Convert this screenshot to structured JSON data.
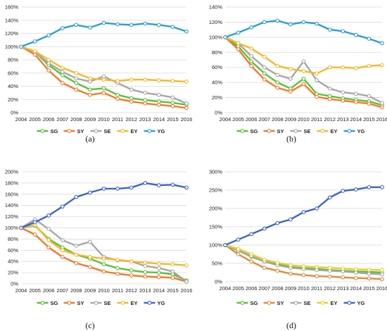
{
  "chart_data": [
    {
      "type": "line",
      "panel_label": "(a)",
      "x": [
        "2004",
        "2005",
        "2006",
        "2007",
        "2008",
        "2009",
        "2010",
        "2011",
        "2012",
        "2013",
        "2014",
        "2015",
        "2016"
      ],
      "ylim": [
        0,
        160
      ],
      "yticks": [
        0,
        20,
        40,
        60,
        80,
        100,
        120,
        140,
        160
      ],
      "ytick_suffix": "%",
      "grid": true,
      "legend_position": "bottom",
      "series": [
        {
          "name": "SG",
          "color": "#5bbf3a",
          "values": [
            100,
            92,
            72,
            57,
            45,
            35,
            37,
            27,
            22,
            19,
            17,
            15,
            12
          ]
        },
        {
          "name": "SY",
          "color": "#f07a2a",
          "values": [
            100,
            88,
            64,
            45,
            35,
            27,
            30,
            21,
            17,
            14,
            12,
            10,
            7
          ]
        },
        {
          "name": "SE",
          "color": "#a6a6a6",
          "values": [
            100,
            92,
            75,
            62,
            52,
            47,
            55,
            45,
            35,
            30,
            27,
            23,
            14
          ]
        },
        {
          "name": "EY",
          "color": "#f4b828",
          "values": [
            100,
            93,
            80,
            68,
            60,
            52,
            50,
            48,
            50,
            50,
            49,
            48,
            47
          ]
        },
        {
          "name": "YG",
          "color": "#2b9ed2",
          "values": [
            100,
            108,
            117,
            128,
            133,
            129,
            136,
            134,
            133,
            135,
            133,
            130,
            123
          ]
        }
      ]
    },
    {
      "type": "line",
      "panel_label": "(b)",
      "x": [
        "2004",
        "2005",
        "2006",
        "2007",
        "2008",
        "2009",
        "2010",
        "2011",
        "2012",
        "2013",
        "2014",
        "2015",
        "2016"
      ],
      "ylim": [
        0,
        140
      ],
      "yticks": [
        0,
        20,
        40,
        60,
        80,
        100,
        120,
        140
      ],
      "ytick_suffix": "%",
      "grid": true,
      "legend_position": "bottom",
      "series": [
        {
          "name": "SG",
          "color": "#5bbf3a",
          "values": [
            100,
            88,
            68,
            52,
            40,
            32,
            45,
            25,
            22,
            19,
            17,
            15,
            10
          ]
        },
        {
          "name": "SY",
          "color": "#f07a2a",
          "values": [
            100,
            84,
            62,
            44,
            33,
            28,
            38,
            21,
            18,
            16,
            14,
            12,
            7
          ]
        },
        {
          "name": "SE",
          "color": "#a6a6a6",
          "values": [
            100,
            92,
            75,
            60,
            50,
            45,
            68,
            43,
            32,
            27,
            25,
            22,
            13
          ]
        },
        {
          "name": "EY",
          "color": "#f4b828",
          "values": [
            100,
            92,
            85,
            74,
            62,
            58,
            55,
            52,
            60,
            60,
            59,
            62,
            63
          ]
        },
        {
          "name": "YG",
          "color": "#2b9ed2",
          "values": [
            100,
            106,
            113,
            120,
            122,
            117,
            120,
            118,
            110,
            108,
            103,
            98,
            92
          ]
        }
      ]
    },
    {
      "type": "line",
      "panel_label": "(c)",
      "x": [
        "2004",
        "2005",
        "2006",
        "2007",
        "2008",
        "2009",
        "2010",
        "2011",
        "2012",
        "2013",
        "2014",
        "2015",
        "2016"
      ],
      "ylim": [
        0,
        200
      ],
      "yticks": [
        0,
        20,
        40,
        60,
        80,
        100,
        120,
        140,
        160,
        180,
        200
      ],
      "ytick_suffix": "%",
      "grid": true,
      "legend_position": "bottom",
      "series": [
        {
          "name": "SG",
          "color": "#5bbf3a",
          "values": [
            100,
            104,
            80,
            65,
            52,
            45,
            35,
            28,
            24,
            21,
            20,
            17,
            6
          ]
        },
        {
          "name": "SY",
          "color": "#f07a2a",
          "values": [
            100,
            88,
            65,
            48,
            37,
            30,
            22,
            18,
            15,
            13,
            12,
            11,
            4
          ]
        },
        {
          "name": "SE",
          "color": "#a6a6a6",
          "values": [
            100,
            115,
            98,
            78,
            68,
            75,
            48,
            42,
            40,
            32,
            28,
            22,
            4
          ]
        },
        {
          "name": "EY",
          "color": "#f4b828",
          "values": [
            100,
            105,
            78,
            60,
            52,
            48,
            45,
            43,
            40,
            38,
            36,
            35,
            33
          ]
        },
        {
          "name": "YG",
          "color": "#3d63c7",
          "values": [
            100,
            110,
            122,
            138,
            155,
            163,
            170,
            170,
            172,
            180,
            176,
            177,
            172
          ]
        }
      ]
    },
    {
      "type": "line",
      "panel_label": "(d)",
      "x": [
        "2004",
        "2005",
        "2006",
        "2007",
        "2008",
        "2009",
        "2010",
        "2011",
        "2012",
        "2013",
        "2014",
        "2015",
        "2016"
      ],
      "ylim": [
        0,
        300
      ],
      "yticks": [
        0,
        50,
        100,
        150,
        200,
        250,
        300
      ],
      "ytick_suffix": "%",
      "grid": true,
      "legend_position": "bottom",
      "series": [
        {
          "name": "SG",
          "color": "#5bbf3a",
          "values": [
            100,
            85,
            68,
            55,
            48,
            40,
            37,
            35,
            32,
            30,
            28,
            27,
            25
          ]
        },
        {
          "name": "SY",
          "color": "#e08a3a",
          "values": [
            100,
            75,
            55,
            38,
            30,
            22,
            18,
            15,
            14,
            12,
            10,
            9,
            7
          ]
        },
        {
          "name": "SE",
          "color": "#a6a6a6",
          "values": [
            100,
            85,
            70,
            55,
            45,
            38,
            35,
            32,
            30,
            28,
            25,
            22,
            20
          ]
        },
        {
          "name": "EY",
          "color": "#e8cf2a",
          "values": [
            100,
            90,
            75,
            60,
            52,
            45,
            42,
            40,
            38,
            36,
            34,
            33,
            32
          ]
        },
        {
          "name": "YG",
          "color": "#3d63c7",
          "values": [
            100,
            115,
            130,
            145,
            160,
            170,
            190,
            200,
            230,
            248,
            252,
            258,
            258
          ]
        }
      ]
    }
  ]
}
